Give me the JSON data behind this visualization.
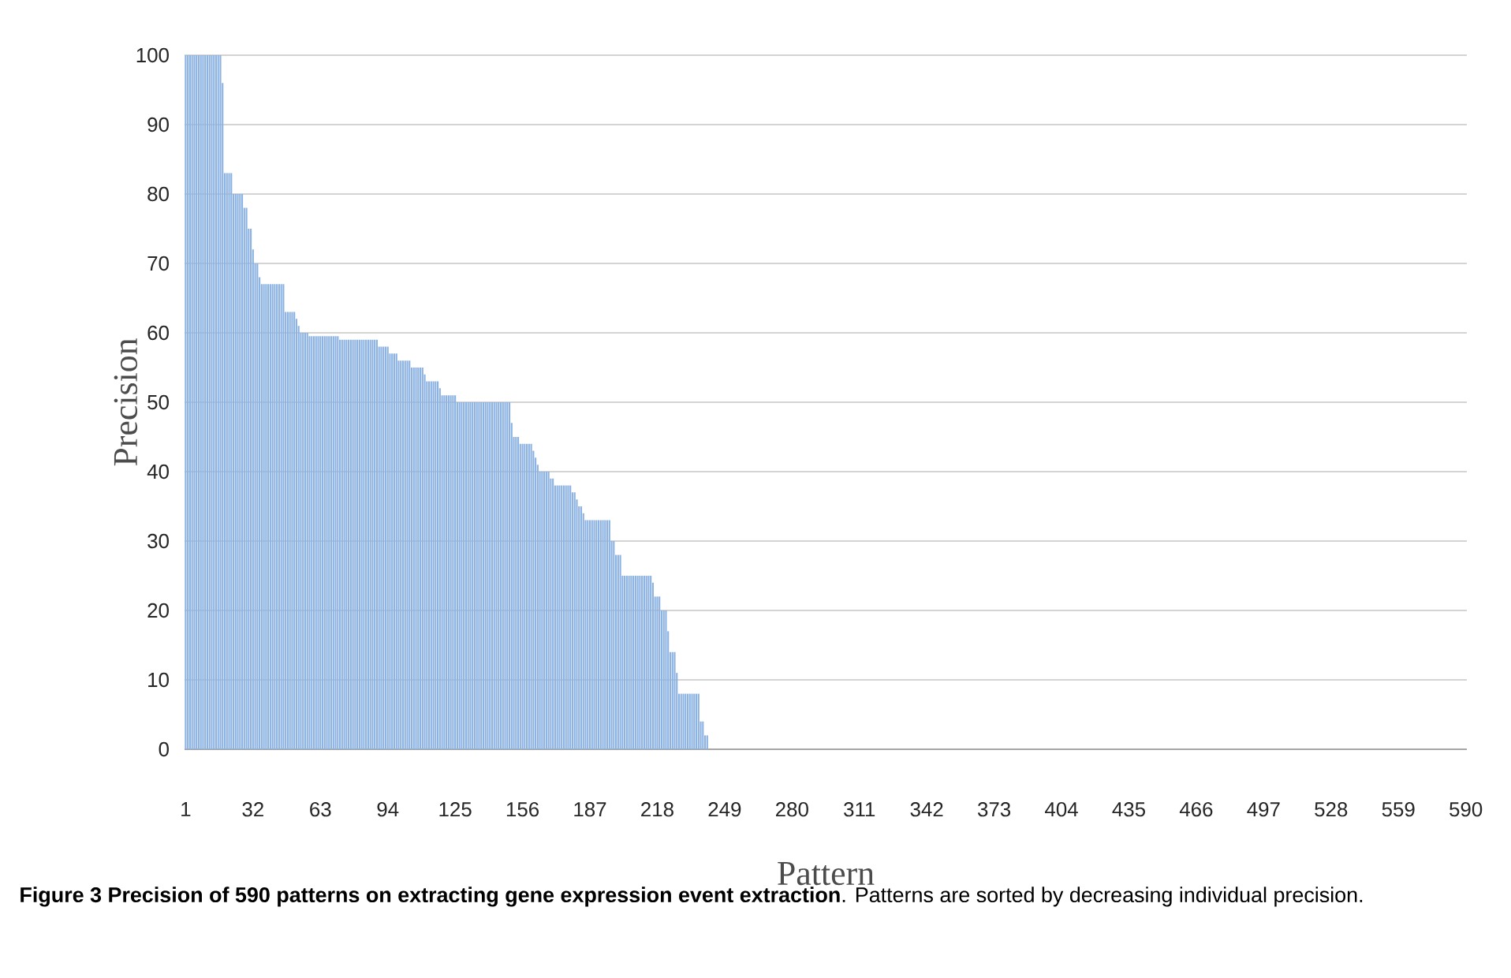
{
  "chart_data": {
    "type": "bar",
    "xlabel": "Pattern",
    "ylabel": "Precision",
    "annotations": [
      "**Figure 3 Precision of 590 patterns on extracting gene expression event extraction**. Patterns are sorted by decreasing individual precision."
    ],
    "color": "#8db3e2",
    "grid": "y",
    "ylim": [
      0,
      100
    ],
    "yticks": [
      0,
      10,
      20,
      30,
      40,
      50,
      60,
      70,
      80,
      90,
      100
    ],
    "categories": [
      "1",
      null,
      null,
      null,
      null,
      null,
      null,
      null,
      null,
      null,
      null,
      null,
      null,
      null,
      null,
      null,
      null,
      null,
      null,
      null,
      null,
      null,
      null,
      null,
      null,
      null,
      null,
      null,
      null,
      null,
      null,
      "32",
      null,
      null,
      null,
      null,
      null,
      null,
      null,
      null,
      null,
      null,
      null,
      null,
      null,
      null,
      null,
      null,
      null,
      null,
      null,
      null,
      null,
      null,
      null,
      null,
      null,
      null,
      null,
      null,
      null,
      null,
      "63",
      null,
      null,
      null,
      null,
      null,
      null,
      null,
      null,
      null,
      null,
      null,
      null,
      null,
      null,
      null,
      null,
      null,
      null,
      null,
      null,
      null,
      null,
      null,
      null,
      null,
      null,
      null,
      null,
      null,
      null,
      "94",
      null,
      null,
      null,
      null,
      null,
      null,
      null,
      null,
      null,
      null,
      null,
      null,
      null,
      null,
      null,
      null,
      null,
      null,
      null,
      null,
      null,
      null,
      null,
      null,
      null,
      null,
      null,
      null,
      null,
      null,
      "125",
      null,
      null,
      null,
      null,
      null,
      null,
      null,
      null,
      null,
      null,
      null,
      null,
      null,
      null,
      null,
      null,
      null,
      null,
      null,
      null,
      null,
      null,
      null,
      null,
      null,
      null,
      null,
      null,
      null,
      null,
      "156",
      null,
      null,
      null,
      null,
      null,
      null,
      null,
      null,
      null,
      null,
      null,
      null,
      null,
      null,
      null,
      null,
      null,
      null,
      null,
      null,
      null,
      null,
      null,
      null,
      null,
      null,
      null,
      null,
      null,
      null,
      "187",
      null,
      null,
      null,
      null,
      null,
      null,
      null,
      null,
      null,
      null,
      null,
      null,
      null,
      null,
      null,
      null,
      null,
      null,
      null,
      null,
      null,
      null,
      null,
      null,
      null,
      null,
      null,
      null,
      null,
      null,
      "218",
      null,
      null,
      null,
      null,
      null,
      null,
      null,
      null,
      null,
      null,
      null,
      null,
      null,
      null,
      null,
      null,
      null,
      null,
      null,
      null,
      null,
      null,
      null,
      null,
      null,
      null,
      null,
      null,
      null,
      null,
      "249",
      null,
      null,
      null,
      null,
      null,
      null,
      null,
      null,
      null,
      null,
      null,
      null,
      null,
      null,
      null,
      null,
      null,
      null,
      null,
      null,
      null,
      null,
      null,
      null,
      null,
      null,
      null,
      null,
      null,
      null,
      "280",
      null,
      null,
      null,
      null,
      null,
      null,
      null,
      null,
      null,
      null,
      null,
      null,
      null,
      null,
      null,
      null,
      null,
      null,
      null,
      null,
      null,
      null,
      null,
      null,
      null,
      null,
      null,
      null,
      null,
      null,
      "311",
      null,
      null,
      null,
      null,
      null,
      null,
      null,
      null,
      null,
      null,
      null,
      null,
      null,
      null,
      null,
      null,
      null,
      null,
      null,
      null,
      null,
      null,
      null,
      null,
      null,
      null,
      null,
      null,
      null,
      null,
      "342",
      null,
      null,
      null,
      null,
      null,
      null,
      null,
      null,
      null,
      null,
      null,
      null,
      null,
      null,
      null,
      null,
      null,
      null,
      null,
      null,
      null,
      null,
      null,
      null,
      null,
      null,
      null,
      null,
      null,
      null,
      "373",
      null,
      null,
      null,
      null,
      null,
      null,
      null,
      null,
      null,
      null,
      null,
      null,
      null,
      null,
      null,
      null,
      null,
      null,
      null,
      null,
      null,
      null,
      null,
      null,
      null,
      null,
      null,
      null,
      null,
      null,
      "404",
      null,
      null,
      null,
      null,
      null,
      null,
      null,
      null,
      null,
      null,
      null,
      null,
      null,
      null,
      null,
      null,
      null,
      null,
      null,
      null,
      null,
      null,
      null,
      null,
      null,
      null,
      null,
      null,
      null,
      null,
      "435",
      null,
      null,
      null,
      null,
      null,
      null,
      null,
      null,
      null,
      null,
      null,
      null,
      null,
      null,
      null,
      null,
      null,
      null,
      null,
      null,
      null,
      null,
      null,
      null,
      null,
      null,
      null,
      null,
      null,
      null,
      "466",
      null,
      null,
      null,
      null,
      null,
      null,
      null,
      null,
      null,
      null,
      null,
      null,
      null,
      null,
      null,
      null,
      null,
      null,
      null,
      null,
      null,
      null,
      null,
      null,
      null,
      null,
      null,
      null,
      null,
      null,
      "497",
      null,
      null,
      null,
      null,
      null,
      null,
      null,
      null,
      null,
      null,
      null,
      null,
      null,
      null,
      null,
      null,
      null,
      null,
      null,
      null,
      null,
      null,
      null,
      null,
      null,
      null,
      null,
      null,
      null,
      null,
      "528",
      null,
      null,
      null,
      null,
      null,
      null,
      null,
      null,
      null,
      null,
      null,
      null,
      null,
      null,
      null,
      null,
      null,
      null,
      null,
      null,
      null,
      null,
      null,
      null,
      null,
      null,
      null,
      null,
      null,
      null,
      "559",
      null,
      null,
      null,
      null,
      null,
      null,
      null,
      null,
      null,
      null,
      null,
      null,
      null,
      null,
      null,
      null,
      null,
      null,
      null,
      null,
      null,
      null,
      null,
      null,
      null,
      null,
      null,
      null,
      null,
      null,
      "590"
    ],
    "values": [
      100,
      100,
      100,
      100,
      100,
      100,
      100,
      100,
      100,
      100,
      100,
      100,
      100,
      100,
      100,
      100,
      100,
      96,
      83,
      83,
      83,
      83,
      80,
      80,
      80,
      80,
      80,
      78,
      78,
      75,
      75,
      72,
      70,
      70,
      68,
      67,
      67,
      67,
      67,
      67,
      67,
      67,
      67,
      67,
      67,
      67,
      63,
      63,
      63,
      63,
      63,
      62,
      61,
      60,
      60,
      60,
      60,
      59.5,
      59.5,
      59.5,
      59.5,
      59.5,
      59.5,
      59.5,
      59.5,
      59.5,
      59.5,
      59.5,
      59.5,
      59.5,
      59.5,
      59,
      59,
      59,
      59,
      59,
      59,
      59,
      59,
      59,
      59,
      59,
      59,
      59,
      59,
      59,
      59,
      59,
      59,
      58,
      58,
      58,
      58,
      58,
      57,
      57,
      57,
      57,
      56,
      56,
      56,
      56,
      56,
      56,
      55,
      55,
      55,
      55,
      55,
      55,
      54,
      53,
      53,
      53,
      53,
      53,
      53,
      52,
      51,
      51,
      51,
      51,
      51,
      51,
      51,
      50,
      50,
      50,
      50,
      50,
      50,
      50,
      50,
      50,
      50,
      50,
      50,
      50,
      50,
      50,
      50,
      50,
      50,
      50,
      50,
      50,
      50,
      50,
      50,
      50,
      47,
      45,
      45,
      45,
      44,
      44,
      44,
      44,
      44,
      44,
      43,
      42,
      41,
      40,
      40,
      40,
      40,
      40,
      39,
      39,
      38,
      38,
      38,
      38,
      38,
      38,
      38,
      38,
      37,
      37,
      36,
      35,
      35,
      34,
      33,
      33,
      33,
      33,
      33,
      33,
      33,
      33,
      33,
      33,
      33,
      33,
      30,
      30,
      28,
      28,
      28,
      25,
      25,
      25,
      25,
      25,
      25,
      25,
      25,
      25,
      25,
      25,
      25,
      25,
      25,
      24,
      22,
      22,
      22,
      20,
      20,
      20,
      17,
      14,
      14,
      14,
      11,
      8,
      8,
      8,
      8,
      8,
      8,
      8,
      8,
      8,
      8,
      4,
      4,
      2,
      2,
      0,
      0,
      0,
      0,
      0,
      0,
      0,
      0,
      0,
      0,
      0,
      0,
      0,
      0,
      0,
      0,
      0,
      0,
      0,
      0,
      0,
      0,
      0,
      0,
      0,
      0,
      0,
      0,
      0,
      0,
      0,
      0,
      0,
      0,
      0,
      0,
      0,
      0,
      0,
      0,
      0,
      0,
      0,
      0,
      0,
      0,
      0,
      0,
      0,
      0,
      0,
      0,
      0,
      0,
      0,
      0,
      0,
      0,
      0,
      0,
      0,
      0,
      0,
      0,
      0,
      0,
      0,
      0,
      0,
      0,
      0,
      0,
      0,
      0,
      0,
      0,
      0,
      0,
      0,
      0,
      0,
      0,
      0,
      0,
      0,
      0,
      0,
      0,
      0,
      0,
      0,
      0,
      0,
      0,
      0,
      0,
      0,
      0,
      0,
      0,
      0,
      0,
      0,
      0,
      0,
      0,
      0,
      0,
      0,
      0,
      0,
      0,
      0,
      0,
      0,
      0,
      0,
      0,
      0,
      0,
      0,
      0,
      0,
      0,
      0,
      0,
      0,
      0,
      0,
      0,
      0,
      0,
      0,
      0,
      0,
      0,
      0,
      0,
      0,
      0,
      0,
      0,
      0,
      0,
      0,
      0,
      0,
      0,
      0,
      0,
      0,
      0,
      0,
      0,
      0,
      0,
      0,
      0,
      0,
      0,
      0,
      0,
      0,
      0,
      0,
      0,
      0,
      0,
      0,
      0,
      0,
      0,
      0,
      0,
      0,
      0,
      0,
      0,
      0,
      0,
      0,
      0,
      0,
      0,
      0,
      0,
      0,
      0,
      0,
      0,
      0,
      0,
      0,
      0,
      0,
      0,
      0,
      0,
      0,
      0,
      0,
      0,
      0,
      0,
      0,
      0,
      0,
      0,
      0,
      0,
      0,
      0,
      0,
      0,
      0,
      0,
      0,
      0,
      0,
      0,
      0,
      0,
      0,
      0,
      0,
      0,
      0,
      0,
      0,
      0,
      0,
      0,
      0,
      0,
      0,
      0,
      0,
      0,
      0,
      0,
      0,
      0,
      0,
      0,
      0,
      0,
      0,
      0,
      0,
      0,
      0,
      0,
      0,
      0,
      0,
      0,
      0,
      0,
      0,
      0,
      0,
      0,
      0,
      0,
      0,
      0,
      0,
      0,
      0,
      0,
      0,
      0,
      0,
      0,
      0,
      0,
      0,
      0,
      0,
      0,
      0,
      0,
      0,
      0,
      0,
      0,
      0,
      0,
      0,
      0,
      0,
      0,
      0,
      0,
      0,
      0,
      0,
      0,
      0,
      0,
      0,
      0,
      0,
      0,
      0,
      0,
      0,
      0,
      0,
      0,
      0,
      0,
      0,
      0,
      0,
      0,
      0,
      0,
      0,
      0,
      0,
      0,
      0,
      0,
      0,
      0,
      0,
      0,
      0,
      0,
      0,
      0,
      0,
      0,
      0,
      0,
      0,
      0,
      0,
      0,
      0,
      0,
      0,
      0,
      0,
      0,
      0,
      0,
      0
    ]
  }
}
